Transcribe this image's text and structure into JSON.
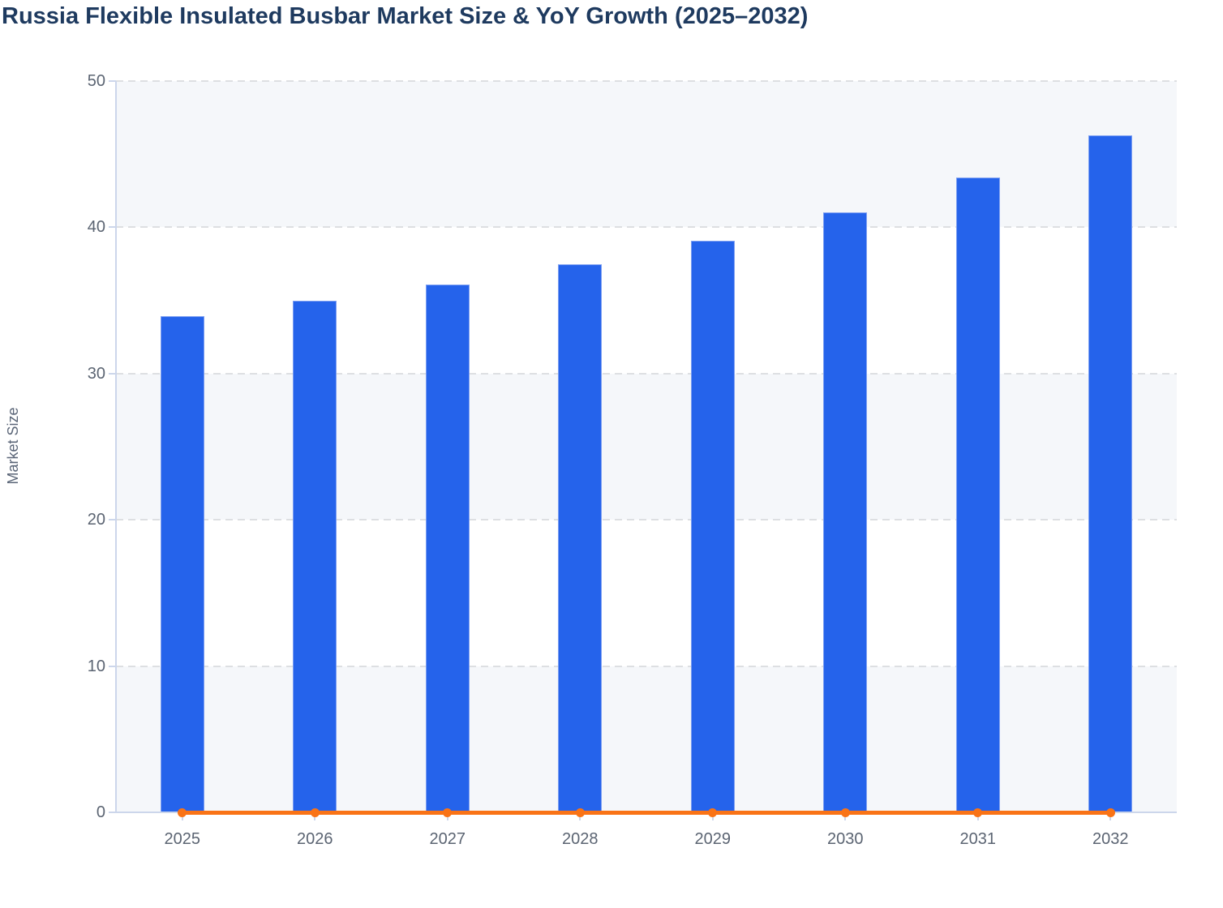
{
  "chart_data": {
    "type": "bar",
    "title": "Russia Flexible Insulated Busbar Market Size & YoY Growth (2025–2032)",
    "xlabel": "",
    "ylabel": "Market Size",
    "categories": [
      "2025",
      "2026",
      "2027",
      "2028",
      "2029",
      "2030",
      "2031",
      "2032"
    ],
    "series": [
      {
        "name": "Market Size",
        "type": "bar",
        "values": [
          33.9,
          35.0,
          36.1,
          37.5,
          39.1,
          41.0,
          43.4,
          46.3
        ]
      },
      {
        "name": "YoY Growth",
        "type": "line",
        "values": [
          0,
          0,
          0,
          0,
          0,
          0,
          0,
          0
        ],
        "note": "line is plotted flat at ~0 on the shared left axis, with a marker dot at every year"
      }
    ],
    "ylim": [
      0,
      50
    ],
    "yticks": [
      0,
      10,
      20,
      30,
      40,
      50
    ],
    "grid": "horizontal dashed gridlines at each y tick",
    "legend": "none",
    "alternating_bands": [
      [
        0,
        10
      ],
      [
        20,
        30
      ],
      [
        40,
        50
      ]
    ]
  },
  "colors": {
    "title_text": "#1e3a5f",
    "bar_fill": "#2563eb",
    "bar_border": "#7d9ff2",
    "line_orange": "#f97316",
    "band_fill": "#f5f7fa",
    "gridline": "#dddfe2",
    "axis_line": "#ccd6eb",
    "tick_label": "#5b6472",
    "axis_title": "#5a6577",
    "background": "#ffffff"
  }
}
